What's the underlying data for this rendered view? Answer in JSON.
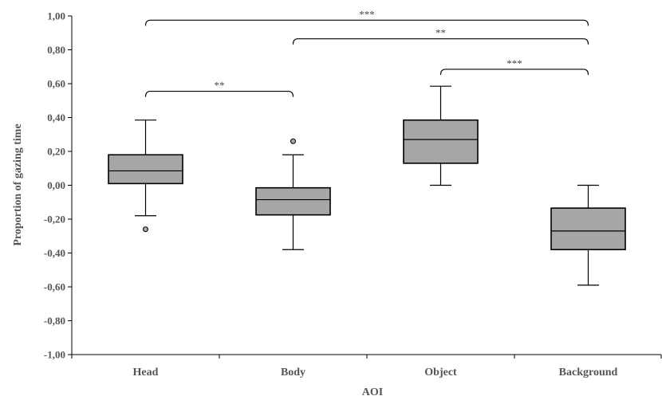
{
  "chart_data": {
    "type": "boxplot",
    "xlabel": "AOI",
    "ylabel": "Proportion of gazing time",
    "ylim": [
      -1.0,
      1.0
    ],
    "yticks": [
      -1.0,
      -0.8,
      -0.6,
      -0.4,
      -0.2,
      0.0,
      0.2,
      0.4,
      0.6,
      0.8,
      1.0
    ],
    "ytick_labels": [
      "-1,00",
      "-0,80",
      "-0,60",
      "-0,40",
      "-0,20",
      "0,00",
      "0,20",
      "0,40",
      "0,60",
      "0,80",
      "1,00"
    ],
    "categories": [
      "Head",
      "Body",
      "Object",
      "Background"
    ],
    "grid": false,
    "box_color": "#a6a6a6",
    "boxes": [
      {
        "category": "Head",
        "whisker_low": -0.18,
        "q1": 0.01,
        "median": 0.085,
        "q3": 0.18,
        "whisker_high": 0.385,
        "outliers": [
          -0.26
        ]
      },
      {
        "category": "Body",
        "whisker_low": -0.38,
        "q1": -0.175,
        "median": -0.085,
        "q3": -0.015,
        "whisker_high": 0.18,
        "outliers": [
          0.26
        ]
      },
      {
        "category": "Object",
        "whisker_low": 0.0,
        "q1": 0.13,
        "median": 0.27,
        "q3": 0.385,
        "whisker_high": 0.585,
        "outliers": []
      },
      {
        "category": "Background",
        "whisker_low": -0.59,
        "q1": -0.38,
        "median": -0.27,
        "q3": -0.135,
        "whisker_high": 0.0,
        "outliers": []
      }
    ],
    "significance": [
      {
        "from": "Head",
        "to": "Background",
        "y": 0.975,
        "label": "***"
      },
      {
        "from": "Body",
        "to": "Background",
        "y": 0.865,
        "label": "**"
      },
      {
        "from": "Object",
        "to": "Background",
        "y": 0.685,
        "label": "***"
      },
      {
        "from": "Head",
        "to": "Body",
        "y": 0.555,
        "label": "**"
      }
    ]
  }
}
